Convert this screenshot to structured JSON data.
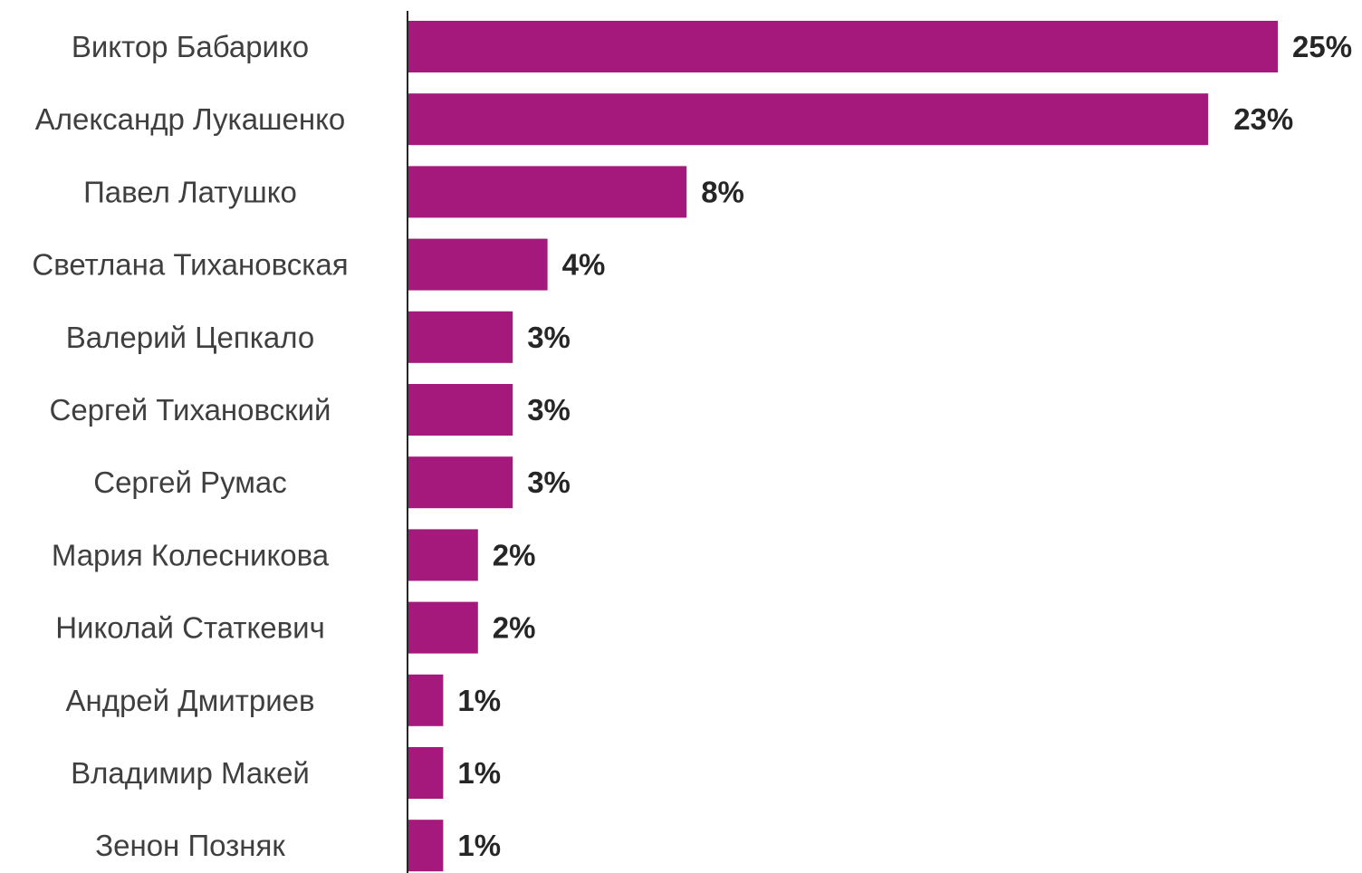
{
  "chart_data": {
    "type": "bar",
    "orientation": "horizontal",
    "title": "",
    "xlabel": "",
    "ylabel": "",
    "grid": false,
    "legend": "none",
    "bar_color": "#a5197d",
    "axis_color": "#262626",
    "value_suffix": "%",
    "categories": [
      "Виктор Бабарико",
      "Александр Лукашенко",
      "Павел Латушко",
      "Светлана Тихановская",
      "Валерий Цепкало",
      "Сергей Тихановский",
      "Сергей Румас",
      "Мария Колесникова",
      "Николай Статкевич",
      "Андрей Дмитриев",
      "Владимир Макей",
      "Зенон Позняк"
    ],
    "values": [
      25,
      23,
      8,
      4,
      3,
      3,
      3,
      2,
      2,
      1,
      1,
      1
    ],
    "value_labels": [
      "25%",
      "23%",
      "8%",
      "4%",
      "3%",
      "3%",
      "3%",
      "2%",
      "2%",
      "1%",
      "1%",
      "1%"
    ],
    "xlim": [
      0,
      25
    ]
  }
}
